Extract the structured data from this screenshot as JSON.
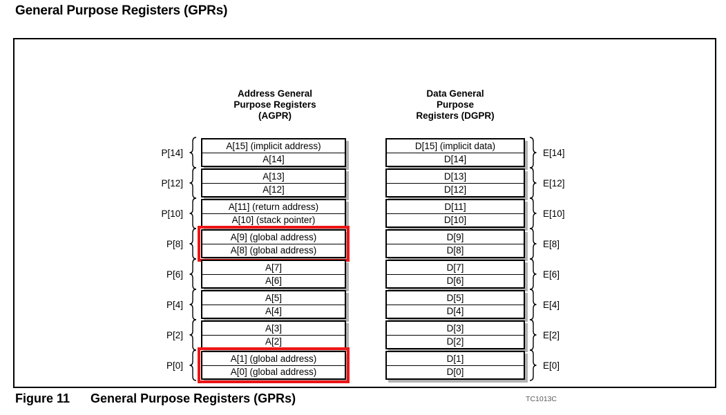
{
  "page": {
    "heading": "General Purpose Registers (GPRs)",
    "figure": {
      "label": "Figure 11",
      "title": "General Purpose Registers (GPRs)"
    },
    "diagram_code": "TC1013C"
  },
  "colors": {
    "highlight_red": "#ee1515",
    "shadow_gray": "#b2b2b2",
    "code_gray": "#5a5a5a",
    "border_black": "#000000"
  },
  "agpr": {
    "header_lines": [
      "Address General",
      "Purpose Registers",
      "(AGPR)"
    ],
    "pairs": [
      {
        "label": "P[14]",
        "rows": [
          "A[15] (implicit address)",
          "A[14]"
        ],
        "highlight": false
      },
      {
        "label": "P[12]",
        "rows": [
          "A[13]",
          "A[12]"
        ],
        "highlight": false
      },
      {
        "label": "P[10]",
        "rows": [
          "A[11] (return address)",
          "A[10] (stack pointer)"
        ],
        "highlight": false
      },
      {
        "label": "P[8]",
        "rows": [
          "A[9] (global address)",
          "A[8] (global address)"
        ],
        "highlight": true
      },
      {
        "label": "P[6]",
        "rows": [
          "A[7]",
          "A[6]"
        ],
        "highlight": false
      },
      {
        "label": "P[4]",
        "rows": [
          "A[5]",
          "A[4]"
        ],
        "highlight": false
      },
      {
        "label": "P[2]",
        "rows": [
          "A[3]",
          "A[2]"
        ],
        "highlight": false
      },
      {
        "label": "P[0]",
        "rows": [
          "A[1] (global address)",
          "A[0] (global address)"
        ],
        "highlight": true
      }
    ]
  },
  "dgpr": {
    "header_lines": [
      "Data General",
      "Purpose",
      "Registers (DGPR)"
    ],
    "pairs": [
      {
        "label": "E[14]",
        "rows": [
          "D[15] (implicit data)",
          "D[14]"
        ],
        "highlight": false
      },
      {
        "label": "E[12]",
        "rows": [
          "D[13]",
          "D[12]"
        ],
        "highlight": false
      },
      {
        "label": "E[10]",
        "rows": [
          "D[11]",
          "D[10]"
        ],
        "highlight": false
      },
      {
        "label": "E[8]",
        "rows": [
          "D[9]",
          "D[8]"
        ],
        "highlight": false
      },
      {
        "label": "E[6]",
        "rows": [
          "D[7]",
          "D[6]"
        ],
        "highlight": false
      },
      {
        "label": "E[4]",
        "rows": [
          "D[5]",
          "D[4]"
        ],
        "highlight": false
      },
      {
        "label": "E[2]",
        "rows": [
          "D[3]",
          "D[2]"
        ],
        "highlight": false
      },
      {
        "label": "E[0]",
        "rows": [
          "D[1]",
          "D[0]"
        ],
        "highlight": false
      }
    ]
  }
}
